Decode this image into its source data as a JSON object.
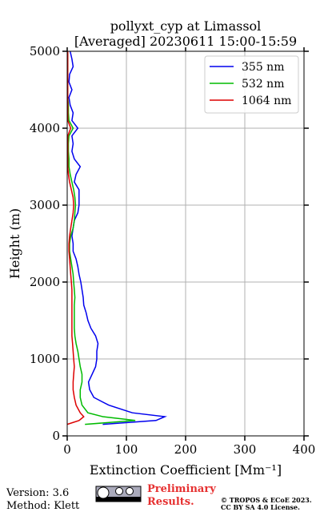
{
  "chart_data": {
    "type": "profile",
    "title": "pollyxt_cyp at Limassol",
    "subtitle": "[Averaged] 20230611 15:00-15:59",
    "xlabel": "Extinction Coefficient [Mm⁻¹]",
    "ylabel": "Height (m)",
    "xlim": [
      0,
      400
    ],
    "xticks": [
      0,
      100,
      200,
      300,
      400
    ],
    "ylim": [
      0,
      5000
    ],
    "yticks": [
      0,
      1000,
      2000,
      3000,
      4000,
      5000
    ],
    "grid": true,
    "legend": "upper-right",
    "heights": [
      150,
      200,
      250,
      300,
      400,
      500,
      600,
      700,
      800,
      900,
      1000,
      1100,
      1200,
      1300,
      1400,
      1500,
      1600,
      1700,
      1800,
      1900,
      2000,
      2100,
      2200,
      2300,
      2400,
      2500,
      2600,
      2700,
      2800,
      2900,
      3000,
      3100,
      3200,
      3300,
      3400,
      3500,
      3600,
      3700,
      3800,
      3900,
      4000,
      4100,
      4200,
      4300,
      4400,
      4500,
      4600,
      4700,
      4800,
      4900,
      5000
    ],
    "series": [
      {
        "name": "355 nm",
        "color": "#0000ee",
        "values": [
          60,
          150,
          165,
          110,
          70,
          45,
          38,
          36,
          42,
          48,
          50,
          50,
          52,
          48,
          40,
          35,
          32,
          28,
          27,
          25,
          23,
          20,
          18,
          15,
          10,
          10,
          8,
          10,
          12,
          18,
          20,
          20,
          20,
          12,
          15,
          22,
          12,
          8,
          10,
          8,
          18,
          8,
          10,
          5,
          3,
          8,
          3,
          4,
          10,
          8,
          5
        ]
      },
      {
        "name": "532 nm",
        "color": "#00bb00",
        "values": [
          30,
          115,
          60,
          35,
          25,
          22,
          22,
          25,
          25,
          22,
          20,
          18,
          15,
          13,
          12,
          12,
          12,
          12,
          13,
          12,
          11,
          10,
          8,
          6,
          4,
          4,
          6,
          10,
          12,
          13,
          14,
          13,
          11,
          8,
          5,
          3,
          3,
          2,
          2,
          3,
          10,
          3,
          2,
          2,
          1,
          1,
          1,
          1,
          1,
          1,
          1
        ]
      },
      {
        "name": "1064 nm",
        "color": "#dd0000",
        "values": [
          0,
          20,
          28,
          22,
          15,
          12,
          10,
          10,
          11,
          12,
          11,
          10,
          9,
          8,
          8,
          8,
          8,
          8,
          8,
          8,
          7,
          6,
          5,
          4,
          3,
          3,
          4,
          6,
          8,
          10,
          11,
          10,
          7,
          4,
          2,
          1,
          1,
          1,
          1,
          1,
          6,
          1,
          1,
          1,
          1,
          1,
          1,
          1,
          1,
          1,
          1
        ]
      }
    ]
  },
  "footer": {
    "version": "Version: 3.6",
    "method": "Method: Klett",
    "notice": "Preliminary Results.",
    "copyright": "© TROPOS & ECoE 2023.",
    "license": "CC BY SA 4.0 License."
  }
}
